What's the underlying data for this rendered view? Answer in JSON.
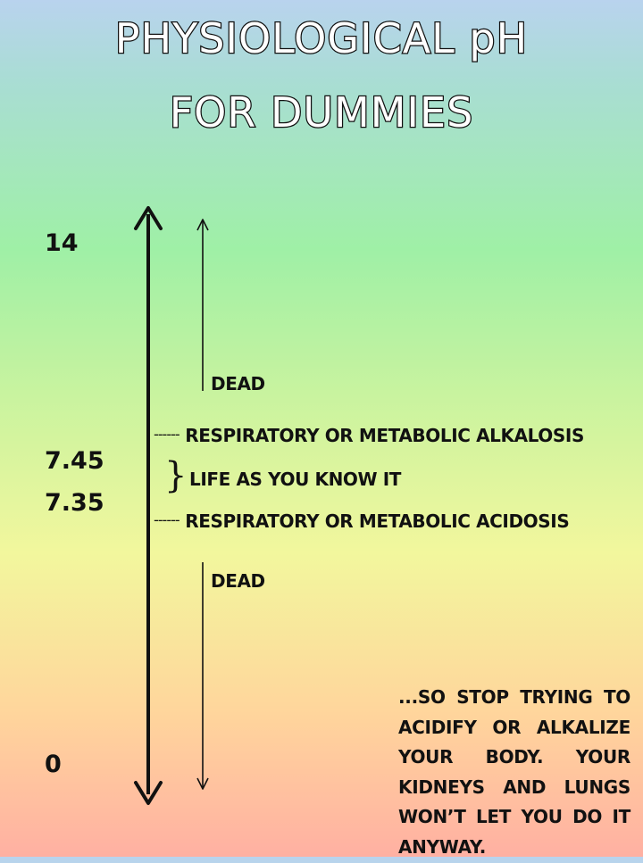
{
  "title": {
    "line1": "PHYSIOLOGICAL pH",
    "line2": "FOR DUMMIES"
  },
  "scale": {
    "max_label": "14",
    "upper_normal_label": "7.45",
    "lower_normal_label": "7.35",
    "min_label": "0"
  },
  "zones": {
    "dead_upper": "DEAD",
    "alkalosis": "RESPIRATORY OR METABOLIC ALKALOSIS",
    "life": "LIFE AS YOU KNOW IT",
    "acidosis": "RESPIRATORY OR METABOLIC ACIDOSIS",
    "dead_lower": "DEAD"
  },
  "markers": {
    "dashes": "------",
    "brace": "}"
  },
  "note": "...SO STOP TRYING TO ACIDIFY OR ALKALIZE YOUR BODY. YOUR KIDNEYS AND LUNGS WON’T LET YOU DO IT ANYWAY.",
  "colors": {
    "top": "#b9d3ee",
    "green": "#9ff0a6",
    "yellow": "#f2f79d",
    "bottom": "#ffb0a2",
    "ink": "#111111"
  }
}
